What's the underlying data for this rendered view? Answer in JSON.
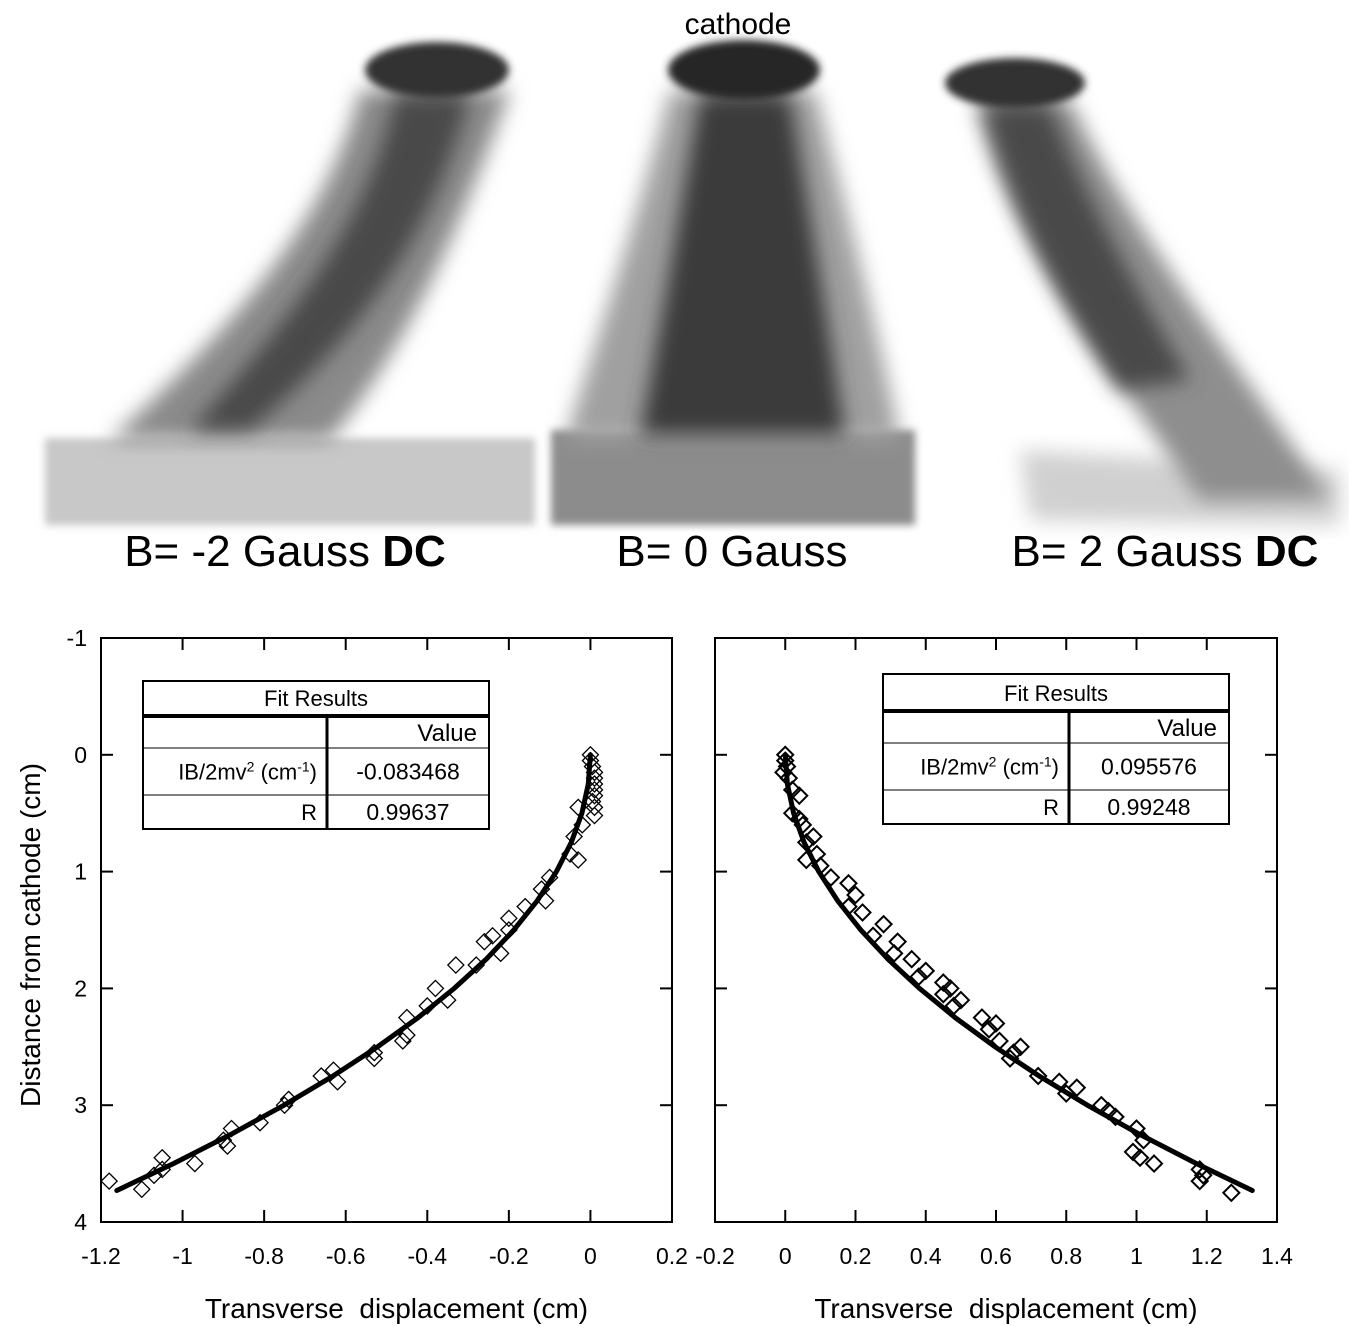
{
  "images": {
    "title": "cathode",
    "captions": [
      {
        "text": "B= -2 Gauss",
        "bold": "DC"
      },
      {
        "text": "B= 0 Gauss"
      },
      {
        "text": "B= 2 Gauss",
        "bold": "DC"
      }
    ]
  },
  "chart_data": [
    {
      "type": "scatter",
      "x_label": "Transverse  displacement (cm)",
      "y_label": "Distance from cathode (cm)",
      "xlim": [
        -1.2,
        0.2
      ],
      "ylim": [
        4,
        -1
      ],
      "xticks": [
        -1.2,
        -1,
        -0.8,
        -0.6,
        -0.4,
        -0.2,
        0,
        0.2
      ],
      "yticks": [
        -1,
        0,
        1,
        2,
        3,
        4
      ],
      "ytick_labels": true,
      "color": "#000000",
      "x": [
        0,
        0,
        0.005,
        0.01,
        0.01,
        0.01,
        0.01,
        0.01,
        0.005,
        0.01,
        0.01,
        -0.03,
        -0.02,
        -0.04,
        -0.03,
        -0.05,
        -0.1,
        -0.12,
        -0.11,
        -0.16,
        -0.2,
        -0.2,
        -0.24,
        -0.26,
        -0.22,
        -0.28,
        -0.33,
        -0.38,
        -0.35,
        -0.4,
        -0.45,
        -0.45,
        -0.46,
        -0.53,
        -0.53,
        -0.63,
        -0.62,
        -0.66,
        -0.74,
        -0.75,
        -0.81,
        -0.88,
        -0.9,
        -0.89,
        -0.97,
        -1.05,
        -1.05,
        -1.07,
        -1.1,
        -1.18
      ],
      "values": [
        0,
        0.05,
        0.1,
        0.15,
        0.2,
        0.25,
        0.3,
        0.35,
        0.4,
        0.45,
        0.52,
        0.45,
        0.6,
        0.7,
        0.9,
        0.85,
        1.05,
        1.15,
        1.25,
        1.3,
        1.4,
        1.5,
        1.55,
        1.6,
        1.7,
        1.8,
        1.8,
        2.0,
        2.1,
        2.15,
        2.25,
        2.4,
        2.45,
        2.55,
        2.6,
        2.7,
        2.8,
        2.75,
        2.95,
        3.0,
        3.15,
        3.2,
        3.3,
        3.35,
        3.5,
        3.45,
        3.55,
        3.6,
        3.72,
        3.65
      ],
      "fit": {
        "x": [
          0,
          -0.0052,
          -0.0209,
          -0.047,
          -0.0835,
          -0.1304,
          -0.1878,
          -0.2556,
          -0.3339,
          -0.4226,
          -0.5217,
          -0.6312,
          -0.7512,
          -0.8816,
          -1.0225,
          -1.1613
        ],
        "values": [
          0,
          0.25,
          0.5,
          0.75,
          1,
          1.25,
          1.5,
          1.75,
          2,
          2.25,
          2.5,
          2.75,
          3,
          3.25,
          3.5,
          3.73
        ]
      },
      "fit_table": {
        "title": "Fit Results",
        "header": "Value",
        "rows": [
          {
            "label": [
              "IB/2mv",
              "2",
              " (cm",
              "-1",
              ")"
            ],
            "value": -0.083468
          },
          {
            "label": [
              "R"
            ],
            "value": 0.99637
          }
        ]
      }
    },
    {
      "type": "scatter",
      "x_label": "Transverse  displacement (cm)",
      "xlim": [
        -0.2,
        1.4
      ],
      "ylim": [
        4,
        -1
      ],
      "xticks": [
        -0.2,
        0,
        0.2,
        0.4,
        0.6,
        0.8,
        1,
        1.2,
        1.4
      ],
      "yticks": [
        -1,
        0,
        1,
        2,
        3,
        4
      ],
      "ytick_labels": false,
      "color": "#000000",
      "x": [
        0,
        0,
        0.005,
        -0.005,
        0.01,
        0.02,
        0.04,
        0.02,
        0.04,
        0.05,
        0.06,
        0.08,
        0.06,
        0.09,
        0.1,
        0.13,
        0.18,
        0.2,
        0.18,
        0.22,
        0.28,
        0.25,
        0.32,
        0.31,
        0.36,
        0.4,
        0.38,
        0.45,
        0.47,
        0.45,
        0.48,
        0.5,
        0.56,
        0.6,
        0.58,
        0.61,
        0.64,
        0.65,
        0.67,
        0.72,
        0.78,
        0.8,
        0.83,
        0.9,
        0.92,
        0.94,
        1.0,
        1.02,
        0.99,
        1.01,
        1.05,
        1.18,
        1.18,
        1.19,
        1.27
      ],
      "values": [
        0,
        0.05,
        0.1,
        0.15,
        0.2,
        0.3,
        0.35,
        0.5,
        0.55,
        0.6,
        0.75,
        0.7,
        0.9,
        0.85,
        0.95,
        1.05,
        1.1,
        1.2,
        1.3,
        1.35,
        1.45,
        1.55,
        1.6,
        1.7,
        1.75,
        1.85,
        1.9,
        1.95,
        2.0,
        2.05,
        2.15,
        2.1,
        2.25,
        2.3,
        2.35,
        2.45,
        2.6,
        2.55,
        2.5,
        2.75,
        2.8,
        2.9,
        2.85,
        3.0,
        3.05,
        3.1,
        3.2,
        3.3,
        3.4,
        3.45,
        3.5,
        3.55,
        3.65,
        3.6,
        3.75
      ],
      "fit": {
        "x": [
          0,
          0.006,
          0.0239,
          0.0538,
          0.0956,
          0.1493,
          0.215,
          0.2927,
          0.3823,
          0.4839,
          0.5974,
          0.7228,
          0.8602,
          1.0095,
          1.1708,
          1.3297
        ],
        "values": [
          0,
          0.25,
          0.5,
          0.75,
          1,
          1.25,
          1.5,
          1.75,
          2,
          2.25,
          2.5,
          2.75,
          3,
          3.25,
          3.5,
          3.73
        ]
      },
      "fit_table": {
        "title": "Fit Results",
        "header": "Value",
        "rows": [
          {
            "label": [
              "IB/2mv",
              "2",
              " (cm",
              "-1",
              ")"
            ],
            "value": 0.095576
          },
          {
            "label": [
              "R"
            ],
            "value": 0.99248
          }
        ]
      }
    }
  ]
}
